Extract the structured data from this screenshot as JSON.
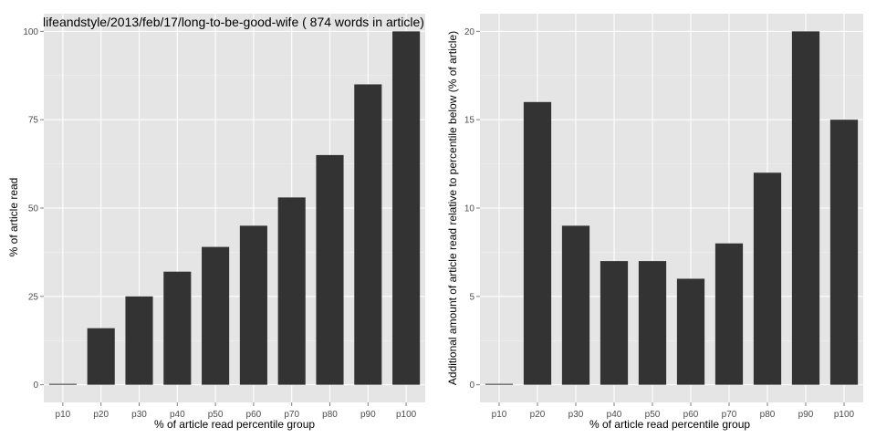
{
  "chart_data": [
    {
      "type": "bar",
      "title": "lifeandstyle/2013/feb/17/long-to-be-good-wife ( 874 words in article)",
      "xlabel": "% of article read percentile group",
      "ylabel": "% of article read",
      "categories": [
        "p10",
        "p20",
        "p30",
        "p40",
        "p50",
        "p60",
        "p70",
        "p80",
        "p90",
        "p100"
      ],
      "values": [
        0,
        16,
        25,
        32,
        39,
        45,
        53,
        65,
        85,
        100
      ],
      "yticks": [
        0,
        25,
        50,
        75,
        100
      ],
      "ylim": [
        -5,
        105
      ],
      "grid": true,
      "colors": {
        "panel": "#e5e5e5",
        "grid": "#ffffff",
        "bar": "#333333"
      }
    },
    {
      "type": "bar",
      "title": "",
      "xlabel": "% of article read percentile group",
      "ylabel": "Additional amount of article read relative to percentile below (% of article)",
      "categories": [
        "p10",
        "p20",
        "p30",
        "p40",
        "p50",
        "p60",
        "p70",
        "p80",
        "p90",
        "p100"
      ],
      "values": [
        0,
        16,
        9,
        7,
        7,
        6,
        8,
        12,
        20,
        15
      ],
      "yticks": [
        0,
        5,
        10,
        15,
        20
      ],
      "ylim": [
        -1,
        21
      ],
      "grid": true,
      "colors": {
        "panel": "#e5e5e5",
        "grid": "#ffffff",
        "bar": "#333333"
      }
    }
  ]
}
